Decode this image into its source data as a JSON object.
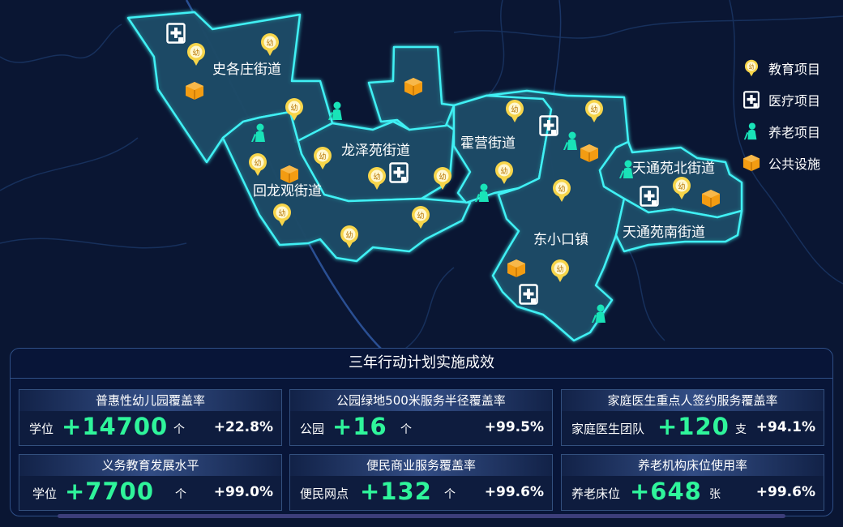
{
  "legend": {
    "items": [
      {
        "label": "教育项目",
        "icon": "education-icon"
      },
      {
        "label": "医疗项目",
        "icon": "medical-icon"
      },
      {
        "label": "养老项目",
        "icon": "elderly-care-icon"
      },
      {
        "label": "公共设施",
        "icon": "public-facility-icon"
      }
    ]
  },
  "map": {
    "districts": [
      {
        "name": "史各庄街道"
      },
      {
        "name": "龙泽苑街道"
      },
      {
        "name": "霍营街道"
      },
      {
        "name": "回龙观街道"
      },
      {
        "name": "天通苑北街道"
      },
      {
        "name": "天通苑南街道"
      },
      {
        "name": "东小口镇"
      }
    ],
    "education_glyph": "幼",
    "colors": {
      "background": "#0a1633",
      "district_fill": "#1c4a66",
      "district_border": "#3ff0f4",
      "education": "#f7d54a",
      "facility": "#f39c12",
      "elderly": "#19e3b8",
      "medical": "#ffffff"
    }
  },
  "panel": {
    "title": "三年行动计划实施成效",
    "cards": [
      {
        "title": "普惠性幼儿园覆盖率",
        "label": "学位",
        "value": "+14700",
        "unit": "个",
        "rate": "+22.8%"
      },
      {
        "title": "公园绿地500米服务半径覆盖率",
        "label": "公园",
        "value": "+16",
        "unit": "个",
        "rate": "+99.5%"
      },
      {
        "title": "家庭医生重点人签约服务覆盖率",
        "label": "家庭医生团队",
        "value": "+120",
        "unit": "支",
        "rate": "+94.1%"
      },
      {
        "title": "义务教育发展水平",
        "label": "学位",
        "value": "+7700",
        "unit": "个",
        "rate": "+99.0%"
      },
      {
        "title": "便民商业服务覆盖率",
        "label": "便民网点",
        "value": "+132",
        "unit": "个",
        "rate": "+99.6%"
      },
      {
        "title": "养老机构床位使用率",
        "label": "养老床位",
        "value": "+648",
        "unit": "张",
        "rate": "+99.6%"
      }
    ]
  }
}
